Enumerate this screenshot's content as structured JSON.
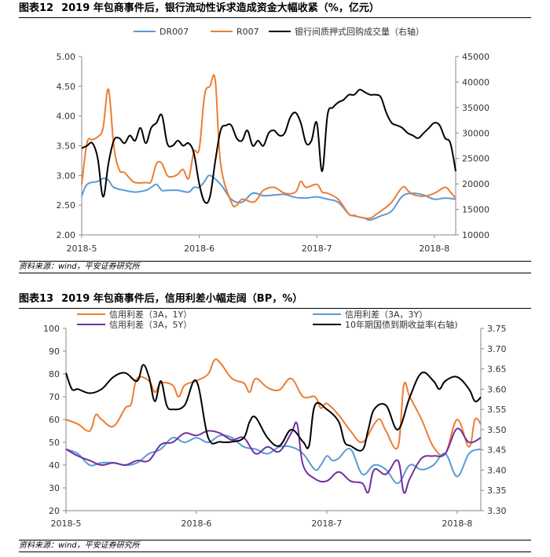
{
  "figures": [
    {
      "number": "图表12",
      "title": "2019 年包商事件后，银行流动性诉求造成资金大幅收紧（%，亿元）",
      "source": "资料来源：wind，平安证券研究所"
    },
    {
      "number": "图表13",
      "title": "2019 年包商事件后，信用利差小幅走阔（BP，%）",
      "source": "资料来源：wind，平安证券研究所"
    }
  ],
  "colors": {
    "blue": "#5b9bd5",
    "orange": "#ed7d31",
    "black": "#000000",
    "purple": "#7030a0"
  },
  "chart_data": [
    {
      "type": "line",
      "title": "2019 年包商事件后，银行流动性诉求造成资金大幅收紧（%，亿元）",
      "x_ticks": [
        "2018-5",
        "2018-6",
        "2018-7",
        "2018-8"
      ],
      "x_tick_positions": [
        0,
        22,
        44,
        66
      ],
      "x_range": [
        0,
        70
      ],
      "y_left": {
        "range": [
          2.0,
          5.0
        ],
        "ticks": [
          "2.00",
          "2.50",
          "3.00",
          "3.50",
          "4.00",
          "4.50",
          "5.00"
        ]
      },
      "y_right": {
        "range": [
          10000,
          45000
        ],
        "ticks": [
          "10000",
          "15000",
          "20000",
          "25000",
          "30000",
          "35000",
          "40000",
          "45000"
        ]
      },
      "series": [
        {
          "name": "DR007",
          "color": "blue",
          "axis": "left",
          "x": [
            0,
            1,
            3,
            4,
            5,
            6,
            8,
            10,
            12,
            13,
            14,
            15,
            16,
            18,
            20,
            21,
            22,
            23,
            24,
            26,
            28,
            30,
            32,
            34,
            36,
            38,
            40,
            42,
            44,
            46,
            48,
            50,
            51,
            52,
            53,
            54,
            56,
            58,
            60,
            62,
            64,
            66,
            68,
            70
          ],
          "values": [
            2.65,
            2.85,
            2.9,
            2.95,
            2.92,
            2.8,
            2.75,
            2.72,
            2.75,
            2.8,
            2.85,
            2.75,
            2.75,
            2.75,
            2.72,
            2.8,
            2.8,
            2.9,
            3.0,
            2.85,
            2.6,
            2.55,
            2.7,
            2.66,
            2.67,
            2.68,
            2.63,
            2.62,
            2.64,
            2.6,
            2.55,
            2.35,
            2.32,
            2.3,
            2.28,
            2.25,
            2.32,
            2.4,
            2.65,
            2.7,
            2.67,
            2.6,
            2.62,
            2.6
          ]
        },
        {
          "name": "R007",
          "color": "orange",
          "axis": "left",
          "x": [
            0,
            1,
            2,
            3,
            4,
            5,
            6,
            7,
            8,
            9,
            10,
            12,
            13,
            14,
            15,
            16,
            17,
            18,
            19,
            20,
            21,
            22,
            23,
            24,
            25,
            26,
            28,
            29,
            30,
            32,
            33,
            34,
            36,
            38,
            40,
            41,
            42,
            44,
            45,
            46,
            48,
            50,
            51,
            52,
            54,
            55,
            56,
            58,
            60,
            61,
            62,
            64,
            66,
            68,
            69,
            70
          ],
          "values": [
            2.85,
            3.55,
            3.6,
            3.65,
            3.8,
            4.45,
            3.5,
            3.1,
            3.05,
            2.95,
            2.88,
            2.88,
            2.9,
            3.2,
            3.2,
            3.0,
            2.98,
            3.02,
            3.1,
            2.95,
            3.4,
            3.45,
            4.35,
            4.5,
            4.6,
            3.2,
            2.55,
            2.5,
            2.6,
            2.55,
            2.62,
            2.75,
            2.8,
            2.7,
            2.72,
            2.9,
            2.8,
            2.85,
            2.72,
            2.7,
            2.6,
            2.35,
            2.33,
            2.3,
            2.28,
            2.34,
            2.4,
            2.55,
            2.8,
            2.75,
            2.68,
            2.65,
            2.7,
            2.8,
            2.72,
            2.62
          ]
        },
        {
          "name": "银行间质押式回购成交量（右轴）",
          "color": "black",
          "axis": "right",
          "x": [
            0,
            1,
            2,
            3,
            4,
            5,
            6,
            7,
            8,
            9,
            10,
            11,
            12,
            13,
            14,
            15,
            16,
            17,
            18,
            19,
            20,
            21,
            22,
            23,
            24,
            25,
            26,
            27,
            28,
            29,
            30,
            31,
            32,
            33,
            34,
            35,
            36,
            37,
            38,
            39,
            40,
            41,
            42,
            43,
            44,
            45,
            46,
            47,
            48,
            49,
            50,
            51,
            52,
            53,
            54,
            55,
            56,
            57,
            58,
            59,
            60,
            61,
            62,
            63,
            64,
            65,
            66,
            67,
            68,
            69,
            70
          ],
          "values": [
            27000,
            27500,
            28000,
            25000,
            17500,
            24000,
            28500,
            29000,
            28000,
            29500,
            28500,
            31000,
            28000,
            31000,
            32000,
            33500,
            28000,
            27500,
            28500,
            27500,
            28000,
            26000,
            20000,
            16500,
            17500,
            24500,
            30500,
            31500,
            31500,
            29000,
            28500,
            30500,
            27500,
            28500,
            27500,
            30000,
            30500,
            29500,
            30000,
            33000,
            34000,
            32000,
            28000,
            28500,
            32000,
            22500,
            33500,
            35000,
            36000,
            36500,
            37500,
            37500,
            38500,
            38000,
            37500,
            37500,
            37000,
            34000,
            32000,
            31500,
            31000,
            30000,
            29500,
            29000,
            30000,
            31000,
            32000,
            31500,
            29000,
            28000,
            22500
          ]
        }
      ]
    },
    {
      "type": "line",
      "title": "2019 年包商事件后，信用利差小幅走阔（BP，%）",
      "x_ticks": [
        "2018-5",
        "2018-6",
        "2018-7",
        "2018-8"
      ],
      "x_tick_positions": [
        0,
        22,
        44,
        66
      ],
      "x_range": [
        0,
        70
      ],
      "y_left": {
        "range": [
          20,
          100
        ],
        "ticks": [
          "20",
          "30",
          "40",
          "50",
          "60",
          "70",
          "80",
          "90",
          "100"
        ]
      },
      "y_right": {
        "range": [
          3.3,
          3.75
        ],
        "ticks": [
          "3.30",
          "3.35",
          "3.40",
          "3.45",
          "3.50",
          "3.55",
          "3.60",
          "3.65",
          "3.70",
          "3.75"
        ]
      },
      "series": [
        {
          "name": "信用利差（3A，1Y）",
          "color": "orange",
          "axis": "left",
          "x": [
            0,
            2,
            4,
            5,
            6,
            8,
            10,
            11,
            12,
            14,
            15,
            16,
            18,
            19,
            20,
            22,
            24,
            25,
            26,
            28,
            30,
            31,
            32,
            34,
            36,
            38,
            40,
            42,
            43,
            44,
            46,
            48,
            50,
            52,
            53,
            54,
            56,
            57,
            58,
            60,
            62,
            64,
            66,
            68,
            69,
            70
          ],
          "values": [
            60,
            58,
            55,
            62,
            60,
            57,
            65,
            67,
            78,
            77,
            72,
            76,
            75,
            70,
            75,
            77,
            80,
            86,
            85,
            78,
            76,
            72,
            78,
            74,
            73,
            78,
            70,
            70,
            65,
            67,
            62,
            55,
            50,
            58,
            60,
            55,
            48,
            75,
            70,
            60,
            48,
            45,
            60,
            48,
            60,
            58
          ]
        },
        {
          "name": "信用利差（3A，3Y）",
          "color": "blue",
          "axis": "left",
          "x": [
            0,
            2,
            4,
            6,
            8,
            10,
            12,
            14,
            16,
            18,
            20,
            22,
            24,
            26,
            28,
            30,
            32,
            34,
            36,
            38,
            40,
            42,
            43,
            44,
            45,
            46,
            48,
            50,
            52,
            54,
            56,
            58,
            60,
            62,
            64,
            66,
            68,
            70
          ],
          "values": [
            47,
            45,
            40,
            41,
            41,
            40,
            41,
            45,
            47,
            52,
            50,
            52,
            50,
            53,
            52,
            48,
            47,
            45,
            48,
            48,
            45,
            38,
            40,
            44,
            42,
            43,
            47,
            36,
            40,
            38,
            32,
            40,
            38,
            40,
            45,
            35,
            45,
            47
          ]
        },
        {
          "name": "信用利差（3A，5Y）",
          "color": "purple",
          "axis": "left",
          "x": [
            0,
            2,
            4,
            6,
            8,
            10,
            12,
            14,
            16,
            18,
            20,
            22,
            24,
            26,
            28,
            30,
            32,
            34,
            36,
            38,
            39,
            40,
            42,
            44,
            46,
            48,
            50,
            51,
            52,
            54,
            56,
            57,
            58,
            60,
            62,
            64,
            66,
            68,
            70
          ],
          "values": [
            47,
            44,
            42,
            40,
            41,
            40,
            42,
            42,
            49,
            50,
            54,
            53,
            55,
            54,
            51,
            52,
            45,
            48,
            46,
            54,
            58,
            40,
            34,
            33,
            37,
            33,
            32,
            28,
            38,
            36,
            42,
            28,
            34,
            43,
            44,
            45,
            56,
            50,
            52
          ]
        },
        {
          "name": "10年期国债到期收益率(右轴)",
          "color": "black",
          "axis": "right",
          "x": [
            0,
            1,
            2,
            4,
            6,
            8,
            10,
            12,
            13,
            14,
            15,
            16,
            17,
            18,
            20,
            22,
            24,
            26,
            28,
            30,
            31,
            32,
            34,
            36,
            38,
            40,
            41,
            42,
            44,
            46,
            47,
            48,
            50,
            51,
            52,
            54,
            56,
            58,
            60,
            62,
            63,
            64,
            66,
            68,
            69,
            70
          ],
          "values": [
            3.64,
            3.6,
            3.6,
            3.59,
            3.6,
            3.63,
            3.64,
            3.62,
            3.66,
            3.63,
            3.57,
            3.62,
            3.56,
            3.55,
            3.56,
            3.62,
            3.48,
            3.47,
            3.47,
            3.48,
            3.52,
            3.53,
            3.48,
            3.46,
            3.5,
            3.47,
            3.46,
            3.56,
            3.55,
            3.52,
            3.47,
            3.46,
            3.45,
            3.5,
            3.55,
            3.56,
            3.5,
            3.58,
            3.64,
            3.62,
            3.6,
            3.62,
            3.63,
            3.6,
            3.57,
            3.58
          ]
        }
      ]
    }
  ]
}
